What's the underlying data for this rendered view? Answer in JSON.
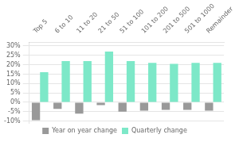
{
  "chart_data": {
    "type": "bar",
    "categories": [
      "Top 5",
      "6 to 10",
      "11 to 20",
      "21 to 50",
      "51 to 100",
      "101 to 200",
      "201 to 500",
      "501 to 1000",
      "Remainder"
    ],
    "series": [
      {
        "name": "Year on year change",
        "color": "#999999",
        "values": [
          -9.5,
          -3.5,
          -6.0,
          -1.5,
          -5.0,
          -4.5,
          -4.0,
          -4.0,
          -4.5
        ]
      },
      {
        "name": "Quarterly change",
        "color": "#7de8c8",
        "values": [
          16.0,
          22.0,
          22.0,
          27.0,
          22.0,
          21.0,
          20.5,
          21.0,
          21.0
        ]
      }
    ],
    "ylim": [
      -11,
      32
    ],
    "yticks": [
      {
        "value": -10,
        "label": "-10%"
      },
      {
        "value": -5,
        "label": "-5%"
      },
      {
        "value": 0,
        "label": "0%"
      },
      {
        "value": 5,
        "label": "5%"
      },
      {
        "value": 10,
        "label": "10%"
      },
      {
        "value": 15,
        "label": "15%"
      },
      {
        "value": 20,
        "label": "20%"
      },
      {
        "value": 25,
        "label": "25%"
      },
      {
        "value": 30,
        "label": "30%"
      }
    ],
    "grid": true,
    "legend": "bottom"
  }
}
